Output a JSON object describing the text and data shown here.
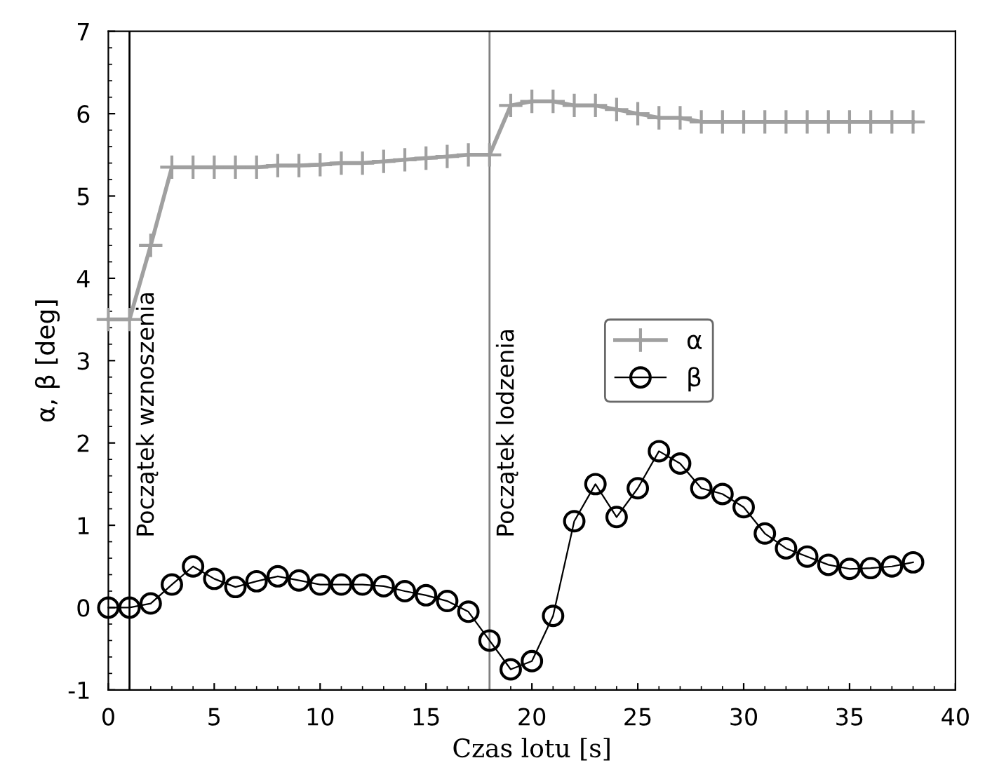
{
  "chart_data": {
    "type": "line",
    "xlabel": "Czas lotu [s]",
    "ylabel": "α, β [deg]",
    "x": [
      0,
      1,
      2,
      3,
      4,
      5,
      6,
      7,
      8,
      9,
      10,
      11,
      12,
      13,
      14,
      15,
      16,
      17,
      18,
      19,
      20,
      21,
      22,
      23,
      24,
      25,
      26,
      27,
      28,
      29,
      30,
      31,
      32,
      33,
      34,
      35,
      36,
      37,
      38
    ],
    "series": [
      {
        "name": "α",
        "color": "#a0a0a0",
        "marker": "cross",
        "x": [
          0,
          1,
          2,
          3,
          4,
          5,
          6,
          7,
          8,
          9,
          10,
          11,
          12,
          13,
          14,
          15,
          16,
          17,
          18,
          19,
          20,
          21,
          22,
          23,
          24,
          25,
          26,
          27,
          28,
          29,
          30,
          31,
          32,
          33,
          34,
          35,
          36,
          37,
          38
        ],
        "values": [
          3.5,
          3.5,
          4.4,
          5.35,
          5.35,
          5.35,
          5.35,
          5.35,
          5.37,
          5.37,
          5.38,
          5.4,
          5.4,
          5.42,
          5.44,
          5.46,
          5.48,
          5.5,
          5.5,
          6.1,
          6.15,
          6.15,
          6.1,
          6.1,
          6.05,
          6.0,
          5.95,
          5.95,
          5.9,
          5.9,
          5.9,
          5.9,
          5.9,
          5.9,
          5.9,
          5.9,
          5.9,
          5.9,
          5.9
        ]
      },
      {
        "name": "β",
        "color": "#000000",
        "marker": "circle",
        "values": [
          0,
          0,
          0.05,
          0.28,
          0.5,
          0.35,
          0.25,
          0.32,
          0.38,
          0.33,
          0.28,
          0.28,
          0.28,
          0.26,
          0.2,
          0.15,
          0.08,
          -0.05,
          -0.4,
          -0.75,
          -0.65,
          -0.1,
          1.05,
          1.5,
          1.1,
          1.45,
          1.9,
          1.75,
          1.45,
          1.38,
          1.22,
          0.9,
          0.72,
          0.62,
          0.52,
          0.47,
          0.48,
          0.5,
          0.55
        ]
      }
    ],
    "xlim": [
      0,
      40
    ],
    "xticks": [
      0,
      5,
      10,
      15,
      20,
      25,
      30,
      35,
      40
    ],
    "ylim": [
      -1,
      7
    ],
    "yticks": [
      -1,
      0,
      1,
      2,
      3,
      4,
      5,
      6,
      7
    ],
    "ref_lines": [
      {
        "axis": "x",
        "value": 1,
        "label": "Początek wznoszenia",
        "color": "#000000"
      },
      {
        "axis": "x",
        "value": 18,
        "label": "Początek lodzenia",
        "color": "#808080"
      }
    ],
    "grid": false,
    "legend": "center",
    "line_style": "solid"
  }
}
